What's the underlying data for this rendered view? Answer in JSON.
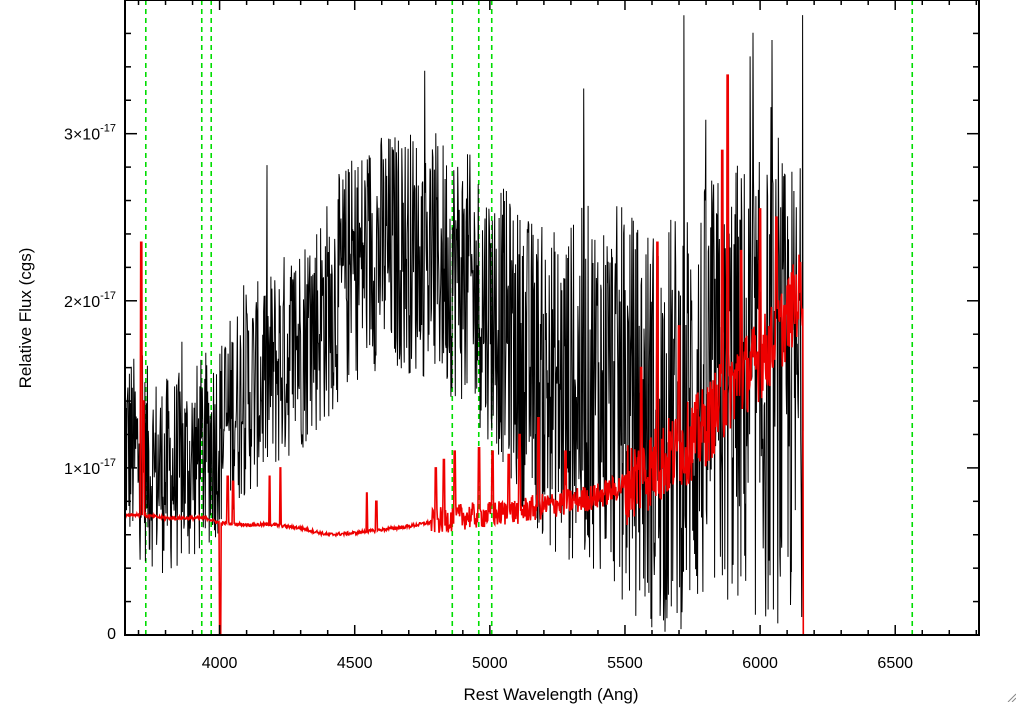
{
  "chart_data": {
    "type": "line",
    "xlabel": "Rest Wavelength (Ang)",
    "ylabel": "Relative Flux (cgs)",
    "xlim": [
      3650,
      6810
    ],
    "ylim": [
      0,
      3.8e-17
    ],
    "x_ticks": [
      {
        "value": 4000,
        "label": "4000"
      },
      {
        "value": 4500,
        "label": "4500"
      },
      {
        "value": 5000,
        "label": "5000"
      },
      {
        "value": 5500,
        "label": "5500"
      },
      {
        "value": 6000,
        "label": "6000"
      },
      {
        "value": 6500,
        "label": "6500"
      }
    ],
    "y_ticks": [
      {
        "value": 0,
        "mantissa": "0",
        "base": "",
        "exponent": ""
      },
      {
        "value": 1e-17,
        "mantissa": "1",
        "base": "×10",
        "exponent": "-17"
      },
      {
        "value": 2e-17,
        "mantissa": "2",
        "base": "×10",
        "exponent": "-17"
      },
      {
        "value": 3e-17,
        "mantissa": "3",
        "base": "×10",
        "exponent": "-17"
      }
    ],
    "x_minor_step": 100,
    "y_minor_step": 2e-18,
    "grid": false,
    "line_markers": {
      "color": "#00dd00",
      "style": "dashed",
      "x": [
        3727,
        3934,
        3969,
        4861,
        4959,
        5007,
        6563
      ]
    },
    "series": [
      {
        "color": "#000000",
        "wavelength_range": [
          3650,
          6160
        ],
        "values": [
          [
            3650,
            1.15e-17
          ],
          [
            3700,
            1.05e-17
          ],
          [
            3750,
            1e-17
          ],
          [
            3800,
            9.5e-18
          ],
          [
            3850,
            9.8e-18
          ],
          [
            3900,
            1.02e-17
          ],
          [
            3950,
            1.1e-17
          ],
          [
            4000,
            1.2e-17
          ],
          [
            4050,
            1.35e-17
          ],
          [
            4100,
            1.45e-17
          ],
          [
            4150,
            1.5e-17
          ],
          [
            4200,
            1.58e-17
          ],
          [
            4250,
            1.68e-17
          ],
          [
            4300,
            1.75e-17
          ],
          [
            4350,
            1.85e-17
          ],
          [
            4400,
            1.95e-17
          ],
          [
            4450,
            2.1e-17
          ],
          [
            4500,
            2.2e-17
          ],
          [
            4550,
            2.28e-17
          ],
          [
            4600,
            2.3e-17
          ],
          [
            4650,
            2.3e-17
          ],
          [
            4700,
            2.3e-17
          ],
          [
            4750,
            2.28e-17
          ],
          [
            4800,
            2.25e-17
          ],
          [
            4850,
            2.2e-17
          ],
          [
            4900,
            2.15e-17
          ],
          [
            4950,
            2.05e-17
          ],
          [
            5000,
            1.95e-17
          ],
          [
            5050,
            1.85e-17
          ],
          [
            5100,
            1.7e-17
          ],
          [
            5150,
            1.6e-17
          ],
          [
            5200,
            1.5e-17
          ],
          [
            5250,
            1.45e-17
          ],
          [
            5300,
            1.45e-17
          ],
          [
            5350,
            1.5e-17
          ],
          [
            5400,
            1.5e-17
          ],
          [
            5450,
            1.45e-17
          ],
          [
            5500,
            1.35e-17
          ],
          [
            5550,
            1.3e-17
          ],
          [
            5600,
            1.25e-17
          ],
          [
            5650,
            1.25e-17
          ],
          [
            5700,
            1.3e-17
          ],
          [
            5750,
            1.35e-17
          ],
          [
            5800,
            1.4e-17
          ],
          [
            5850,
            1.45e-17
          ],
          [
            5900,
            1.5e-17
          ],
          [
            5950,
            1.5e-17
          ],
          [
            6000,
            1.45e-17
          ],
          [
            6050,
            1.45e-17
          ],
          [
            6100,
            1.45e-17
          ],
          [
            6150,
            1.45e-17
          ]
        ],
        "noise_amplitude": [
          [
            3650,
            6e-18
          ],
          [
            4000,
            6e-18
          ],
          [
            4500,
            7e-18
          ],
          [
            5000,
            8e-18
          ],
          [
            5500,
            1.2e-17
          ],
          [
            6000,
            1.4e-17
          ],
          [
            6160,
            1.4e-17
          ]
        ]
      },
      {
        "color": "#ee0000",
        "wavelength_range": [
          3650,
          6810
        ],
        "values": [
          [
            3650,
            7.2e-18
          ],
          [
            3700,
            7.2e-18
          ],
          [
            3750,
            7.1e-18
          ],
          [
            3800,
            7e-18
          ],
          [
            3850,
            7e-18
          ],
          [
            3900,
            7e-18
          ],
          [
            3950,
            7e-18
          ],
          [
            4000,
            6.7e-18
          ],
          [
            4100,
            6.6e-18
          ],
          [
            4200,
            6.6e-18
          ],
          [
            4300,
            6.4e-18
          ],
          [
            4400,
            6e-18
          ],
          [
            4500,
            6.1e-18
          ],
          [
            4600,
            6.3e-18
          ],
          [
            4700,
            6.5e-18
          ],
          [
            4800,
            6.8e-18
          ],
          [
            4900,
            7.1e-18
          ],
          [
            5000,
            7.2e-18
          ],
          [
            5100,
            7.4e-18
          ],
          [
            5200,
            7.7e-18
          ],
          [
            5300,
            8e-18
          ],
          [
            5400,
            8.3e-18
          ],
          [
            5500,
            9e-18
          ],
          [
            5600,
            1e-17
          ],
          [
            5700,
            1.1e-17
          ],
          [
            5800,
            1.25e-17
          ],
          [
            5900,
            1.5e-17
          ],
          [
            6000,
            1.65e-17
          ],
          [
            6050,
            1.75e-17
          ],
          [
            6100,
            1.9e-17
          ],
          [
            6155,
            2.08e-17
          ],
          [
            6160,
            0
          ],
          [
            6810,
            0
          ]
        ],
        "spikes": [
          [
            3710,
            2.35e-17
          ],
          [
            3718,
            1.4e-17
          ],
          [
            4030,
            9.5e-18
          ],
          [
            4050,
            9.2e-18
          ],
          [
            4185,
            9.5e-18
          ],
          [
            4225,
            1e-17
          ],
          [
            4545,
            8.5e-18
          ],
          [
            4580,
            8e-18
          ],
          [
            4800,
            1e-17
          ],
          [
            4830,
            1.05e-17
          ],
          [
            4870,
            1.1e-17
          ],
          [
            4960,
            1.12e-17
          ],
          [
            5010,
            1.1e-17
          ],
          [
            5070,
            1.08e-17
          ],
          [
            5110,
            1.2e-17
          ],
          [
            5180,
            1.3e-17
          ],
          [
            5280,
            1.1e-17
          ],
          [
            5560,
            1.6e-17
          ],
          [
            5620,
            2.35e-17
          ],
          [
            5700,
            1.85e-17
          ],
          [
            5860,
            2.9e-17
          ],
          [
            5880,
            3.35e-17
          ],
          [
            5930,
            2.3e-17
          ],
          [
            6000,
            2.55e-17
          ],
          [
            6060,
            2.5e-17
          ]
        ],
        "drop_to_zero": [
          4000,
          4005
        ]
      }
    ]
  }
}
